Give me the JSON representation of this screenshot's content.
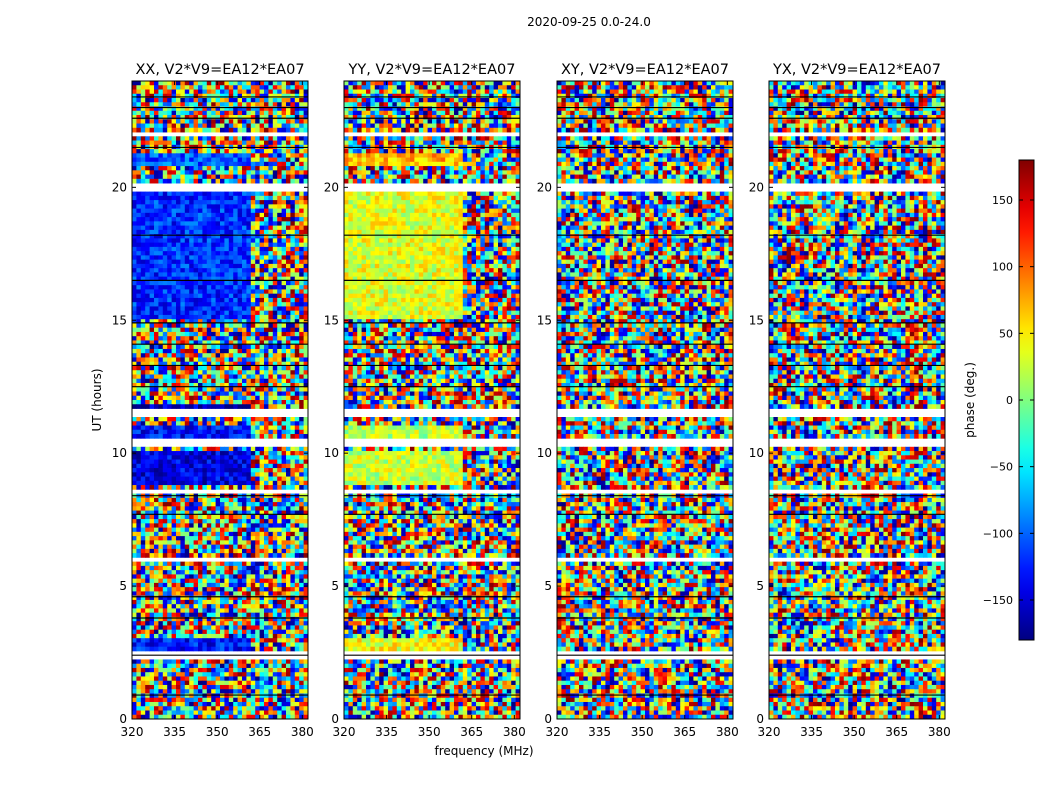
{
  "figure_title": "2020-09-25 0.0-24.0",
  "chart_data": {
    "type": "heatmap",
    "suptitle": "2020-09-25 0.0-24.0",
    "xlabel": "frequency (MHz)",
    "ylabel": "UT (hours)",
    "xlim": [
      320,
      382
    ],
    "ylim": [
      0,
      24
    ],
    "x_ticks": [
      320,
      335,
      350,
      365,
      380
    ],
    "y_ticks": [
      0,
      5,
      10,
      15,
      20
    ],
    "colormap": "jet",
    "colorbar": {
      "label": "phase (deg.)",
      "range": [
        -180,
        180
      ],
      "ticks": [
        150,
        100,
        50,
        0,
        -50,
        -100,
        -150
      ],
      "tick_labels": [
        "150",
        "100",
        "50",
        "0",
        "−50",
        "−100",
        "−150"
      ]
    },
    "panels": [
      {
        "title": "XX, V2*V9=EA12*EA07",
        "polarization": "XX",
        "baseline": "V2*V9=EA12*EA07"
      },
      {
        "title": "YY, V2*V9=EA12*EA07",
        "polarization": "YY",
        "baseline": "V2*V9=EA12*EA07"
      },
      {
        "title": "XY, V2*V9=EA12*EA07",
        "polarization": "XY",
        "baseline": "V2*V9=EA12*EA07"
      },
      {
        "title": "YX, V2*V9=EA12*EA07",
        "polarization": "YX",
        "baseline": "V2*V9=EA12*EA07"
      }
    ],
    "flagged_time_ranges_hours": [
      [
        2.25,
        2.5
      ],
      [
        5.9,
        6.0
      ],
      [
        8.5,
        8.7
      ],
      [
        10.3,
        10.5
      ],
      [
        11.4,
        11.6
      ],
      [
        14.2,
        14.3
      ],
      [
        19.9,
        20.1
      ],
      [
        21.9,
        22.1
      ]
    ],
    "coherent_phase_bands": {
      "XX": [
        {
          "t": [
            2.6,
            3.1
          ],
          "phase_deg": -130,
          "f_max": 362
        },
        {
          "t": [
            8.8,
            10.0
          ],
          "phase_deg": -145,
          "f_max": 362
        },
        {
          "t": [
            10.5,
            11.0
          ],
          "phase_deg": -130,
          "f_max": 362
        },
        {
          "t": [
            11.6,
            11.9
          ],
          "phase_deg": -160,
          "f_max": 362
        },
        {
          "t": [
            15.0,
            19.8
          ],
          "phase_deg": -120,
          "f_max": 362
        },
        {
          "t": [
            20.8,
            21.3
          ],
          "phase_deg": -105,
          "f_max": 362
        }
      ],
      "YY": [
        {
          "t": [
            2.6,
            3.1
          ],
          "phase_deg": 40,
          "f_max": 362
        },
        {
          "t": [
            8.8,
            10.0
          ],
          "phase_deg": 25,
          "f_max": 362
        },
        {
          "t": [
            10.5,
            11.0
          ],
          "phase_deg": 20,
          "f_max": 362
        },
        {
          "t": [
            15.0,
            19.8
          ],
          "phase_deg": 35,
          "f_max": 362
        },
        {
          "t": [
            20.8,
            21.3
          ],
          "phase_deg": 70,
          "f_max": 362
        }
      ],
      "XY": [],
      "YX": []
    }
  }
}
